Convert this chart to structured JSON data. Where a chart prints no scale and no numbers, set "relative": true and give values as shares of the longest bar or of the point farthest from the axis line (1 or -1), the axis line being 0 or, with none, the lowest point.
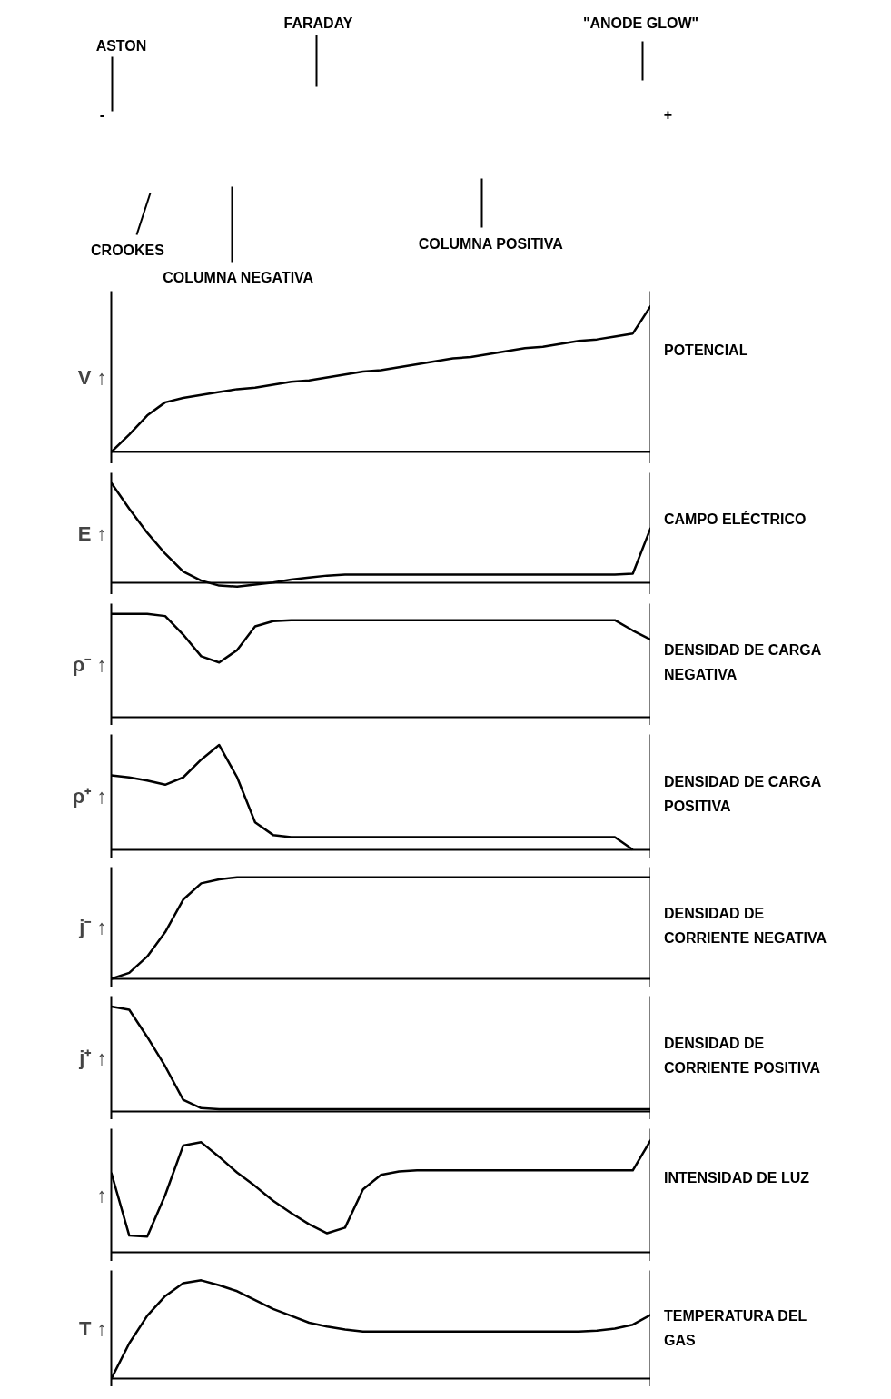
{
  "chart_data": [
    {
      "type": "other",
      "annotations": [
        "ASTON",
        "FARADAY",
        "\"ANODE GLOW\"",
        "-",
        "+",
        "CROOKES",
        "COLUMNA NEGATIVA",
        "COLUMNA POSITIVA"
      ]
    },
    {
      "type": "line",
      "relative": true,
      "ylabel": "V ↑",
      "annotations": [
        "POTENCIAL"
      ],
      "categories": [
        null,
        null,
        null,
        null,
        null,
        null,
        null,
        null,
        null,
        null,
        null,
        null,
        null,
        null,
        null,
        null,
        null,
        null,
        null,
        null,
        null,
        null,
        null,
        null,
        null,
        null,
        null,
        null,
        null,
        null,
        null
      ],
      "series": [
        {
          "color": "#000000",
          "values": [
            0,
            0.12,
            0.25,
            0.34,
            0.37,
            0.39,
            0.41,
            0.43,
            0.44,
            0.46,
            0.48,
            0.49,
            0.51,
            0.53,
            0.55,
            0.56,
            0.58,
            0.6,
            0.62,
            0.64,
            0.65,
            0.67,
            0.69,
            0.71,
            0.72,
            0.74,
            0.76,
            0.77,
            0.79,
            0.81,
            1.0
          ]
        }
      ]
    },
    {
      "type": "line",
      "relative": true,
      "ylabel": "E ↑",
      "annotations": [
        "CAMPO ELÉCTRICO"
      ],
      "categories": [
        null,
        null,
        null,
        null,
        null,
        null,
        null,
        null,
        null,
        null,
        null,
        null,
        null,
        null,
        null,
        null,
        null,
        null,
        null,
        null,
        null,
        null,
        null,
        null,
        null,
        null,
        null,
        null,
        null,
        null,
        null
      ],
      "series": [
        {
          "color": "#000000",
          "values": [
            1.0,
            0.74,
            0.5,
            0.29,
            0.11,
            0.02,
            -0.03,
            -0.04,
            -0.02,
            0,
            0.03,
            0.05,
            0.07,
            0.08,
            0.08,
            0.08,
            0.08,
            0.08,
            0.08,
            0.08,
            0.08,
            0.08,
            0.08,
            0.08,
            0.08,
            0.08,
            0.08,
            0.08,
            0.08,
            0.09,
            0.55
          ]
        }
      ]
    },
    {
      "type": "line",
      "relative": true,
      "ylabel": "ρ⁻ ↑",
      "annotations": [
        "DENSIDAD DE CARGA NEGATIVA"
      ],
      "categories": [
        null,
        null,
        null,
        null,
        null,
        null,
        null,
        null,
        null,
        null,
        null,
        null,
        null,
        null,
        null,
        null,
        null,
        null,
        null,
        null,
        null,
        null,
        null,
        null,
        null,
        null,
        null,
        null,
        null,
        null,
        null
      ],
      "series": [
        {
          "color": "#000000",
          "values": [
            1.0,
            1.0,
            1.0,
            0.98,
            0.8,
            0.59,
            0.53,
            0.65,
            0.88,
            0.93,
            0.94,
            0.94,
            0.94,
            0.94,
            0.94,
            0.94,
            0.94,
            0.94,
            0.94,
            0.94,
            0.94,
            0.94,
            0.94,
            0.94,
            0.94,
            0.94,
            0.94,
            0.94,
            0.94,
            0.84,
            0.75
          ]
        }
      ]
    },
    {
      "type": "line",
      "relative": true,
      "ylabel": "ρ⁺ ↑",
      "annotations": [
        "DENSIDAD DE CARGA POSITIVA"
      ],
      "categories": [
        null,
        null,
        null,
        null,
        null,
        null,
        null,
        null,
        null,
        null,
        null,
        null,
        null,
        null,
        null,
        null,
        null,
        null,
        null,
        null,
        null,
        null,
        null,
        null,
        null,
        null,
        null,
        null,
        null,
        null,
        null
      ],
      "series": [
        {
          "color": "#000000",
          "values": [
            0.71,
            0.69,
            0.66,
            0.62,
            0.69,
            0.86,
            1.0,
            0.69,
            0.26,
            0.14,
            0.12,
            0.12,
            0.12,
            0.12,
            0.12,
            0.12,
            0.12,
            0.12,
            0.12,
            0.12,
            0.12,
            0.12,
            0.12,
            0.12,
            0.12,
            0.12,
            0.12,
            0.12,
            0.12,
            0,
            null
          ]
        }
      ]
    },
    {
      "type": "line",
      "relative": true,
      "ylabel": "j⁻ ↑",
      "annotations": [
        "DENSIDAD DE CORRIENTE NEGATIVA"
      ],
      "categories": [
        null,
        null,
        null,
        null,
        null,
        null,
        null,
        null,
        null,
        null,
        null,
        null,
        null,
        null,
        null,
        null,
        null,
        null,
        null,
        null,
        null,
        null,
        null,
        null,
        null,
        null,
        null,
        null,
        null,
        null,
        null
      ],
      "series": [
        {
          "color": "#000000",
          "values": [
            0,
            0.06,
            0.22,
            0.46,
            0.78,
            0.94,
            0.98,
            1.0,
            1.0,
            1.0,
            1.0,
            1.0,
            1.0,
            1.0,
            1.0,
            1.0,
            1.0,
            1.0,
            1.0,
            1.0,
            1.0,
            1.0,
            1.0,
            1.0,
            1.0,
            1.0,
            1.0,
            1.0,
            1.0,
            1.0,
            1.0
          ]
        }
      ]
    },
    {
      "type": "line",
      "relative": true,
      "ylabel": "j⁺ ↑",
      "annotations": [
        "DENSIDAD DE CORRIENTE POSITIVA"
      ],
      "categories": [
        null,
        null,
        null,
        null,
        null,
        null,
        null,
        null,
        null,
        null,
        null,
        null,
        null,
        null,
        null,
        null,
        null,
        null,
        null,
        null,
        null,
        null,
        null,
        null,
        null,
        null,
        null,
        null,
        null,
        null,
        null
      ],
      "series": [
        {
          "color": "#000000",
          "values": [
            1.0,
            0.97,
            0.71,
            0.43,
            0.11,
            0.03,
            0.02,
            0.02,
            0.02,
            0.02,
            0.02,
            0.02,
            0.02,
            0.02,
            0.02,
            0.02,
            0.02,
            0.02,
            0.02,
            0.02,
            0.02,
            0.02,
            0.02,
            0.02,
            0.02,
            0.02,
            0.02,
            0.02,
            0.02,
            0.02,
            0.02
          ]
        }
      ]
    },
    {
      "type": "line",
      "relative": true,
      "ylabel": "↑",
      "annotations": [
        "INTENSIDAD DE LUZ"
      ],
      "categories": [
        null,
        null,
        null,
        null,
        null,
        null,
        null,
        null,
        null,
        null,
        null,
        null,
        null,
        null,
        null,
        null,
        null,
        null,
        null,
        null,
        null,
        null,
        null,
        null,
        null,
        null,
        null,
        null,
        null,
        null,
        null
      ],
      "series": [
        {
          "color": "#000000",
          "values": [
            0.71,
            0.15,
            0.14,
            0.51,
            0.95,
            0.98,
            0.85,
            0.71,
            0.59,
            0.46,
            0.35,
            0.25,
            0.17,
            0.22,
            0.56,
            0.69,
            0.72,
            0.73,
            0.73,
            0.73,
            0.73,
            0.73,
            0.73,
            0.73,
            0.73,
            0.73,
            0.73,
            0.73,
            0.73,
            0.73,
            1.0
          ]
        }
      ]
    },
    {
      "type": "line",
      "relative": true,
      "ylabel": "T ↑",
      "annotations": [
        "TEMPERATURA DEL GAS"
      ],
      "categories": [
        null,
        null,
        null,
        null,
        null,
        null,
        null,
        null,
        null,
        null,
        null,
        null,
        null,
        null,
        null,
        null,
        null,
        null,
        null,
        null,
        null,
        null,
        null,
        null,
        null,
        null,
        null,
        null,
        null,
        null,
        null
      ],
      "series": [
        {
          "color": "#000000",
          "values": [
            0,
            0.36,
            0.64,
            0.84,
            0.97,
            1.0,
            0.95,
            0.89,
            0.8,
            0.71,
            0.64,
            0.57,
            0.53,
            0.5,
            0.48,
            0.48,
            0.48,
            0.48,
            0.48,
            0.48,
            0.48,
            0.48,
            0.48,
            0.48,
            0.48,
            0.48,
            0.48,
            0.49,
            0.51,
            0.55,
            0.65
          ]
        }
      ]
    }
  ]
}
